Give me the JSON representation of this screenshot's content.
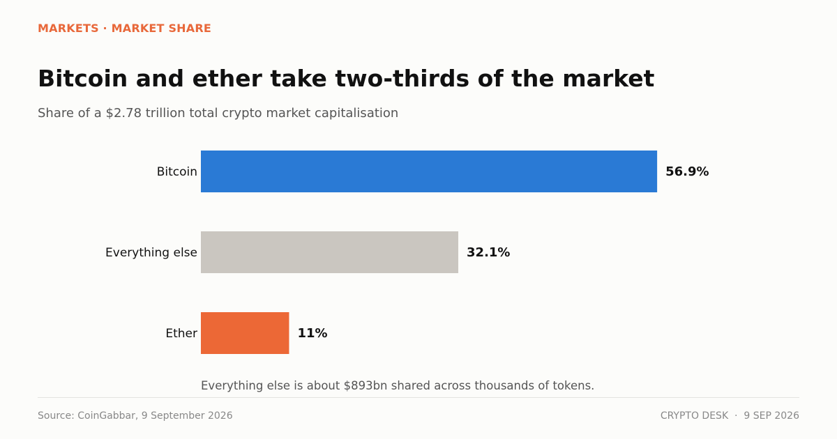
{
  "header": {
    "kicker": "MARKETS · MARKET SHARE",
    "title": "Bitcoin and ether take two-thirds of the market",
    "subtitle": "Share of a $2.78 trillion total crypto market capitalisation"
  },
  "chart_data": {
    "type": "bar",
    "orientation": "horizontal",
    "categories": [
      "Bitcoin",
      "Everything else",
      "Ether"
    ],
    "values": [
      56.9,
      32.1,
      11
    ],
    "value_labels": [
      "56.9%",
      "32.1%",
      "11%"
    ],
    "colors": [
      "#2a7ad5",
      "#cac6c0",
      "#ec6836"
    ],
    "xlim": [
      0,
      63.5
    ],
    "grid": false,
    "legend": "none",
    "annotation": "Everything else is about $893bn shared across thousands of tokens."
  },
  "footer": {
    "source": "Source: CoinGabbar, 9 September 2026",
    "credit": "CRYPTO DESK  ·  9 SEP 2026"
  }
}
